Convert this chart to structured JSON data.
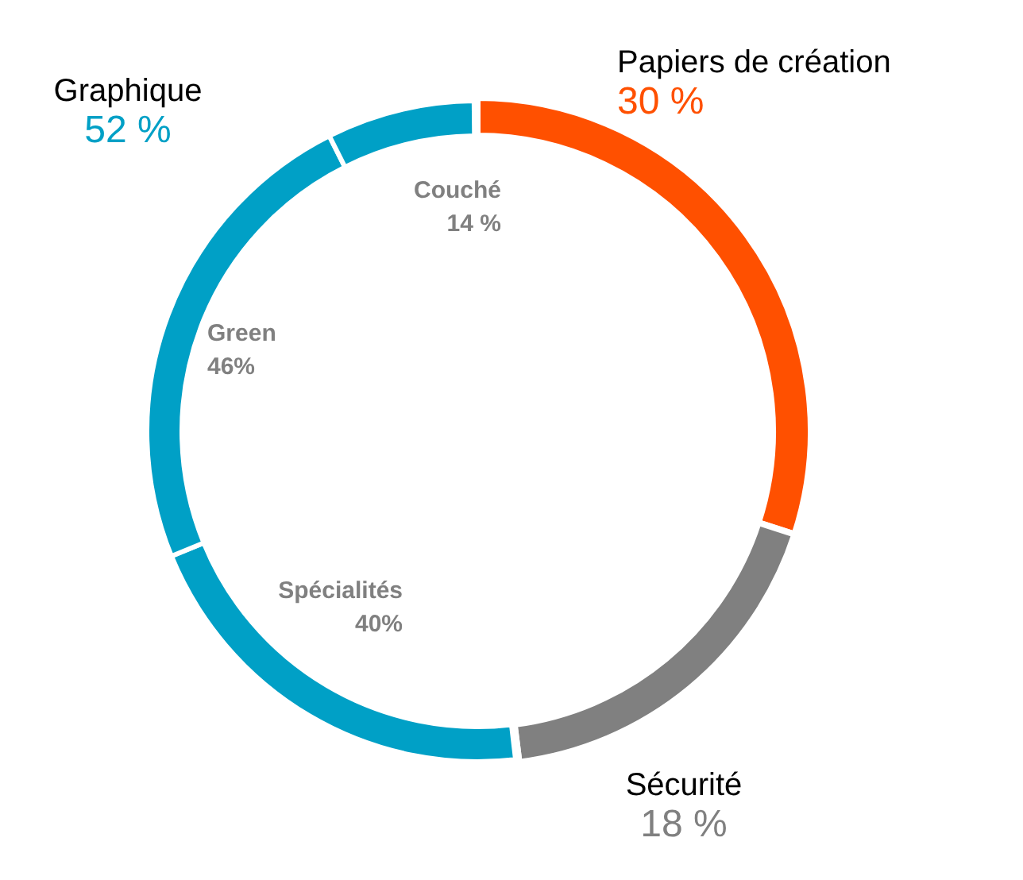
{
  "chart_data": [
    {
      "type": "donut",
      "categories": [
        "Papiers de création",
        "Sécurité",
        "Graphique"
      ],
      "values": [
        30,
        18,
        52
      ],
      "colors": [
        "#ff5000",
        "#808080",
        "#00a0c6"
      ],
      "value_labels": [
        "30 %",
        "18 %",
        "52 %"
      ]
    },
    {
      "type": "donut",
      "categories": [
        "Spécialités",
        "Green",
        "Couché"
      ],
      "values": [
        40,
        46,
        14
      ],
      "colors": [
        "#00a0c6",
        "#00a0c6",
        "#00a0c6"
      ],
      "value_labels": [
        "40%",
        "46%",
        "14 %"
      ]
    }
  ]
}
